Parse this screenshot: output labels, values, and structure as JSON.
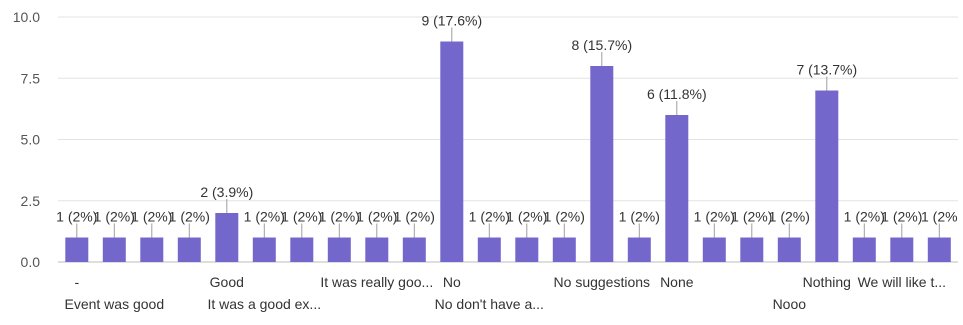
{
  "chart_data": {
    "type": "bar",
    "title": "",
    "xlabel": "",
    "ylabel": "",
    "ylim": [
      0,
      10
    ],
    "yticks": [
      "0.0",
      "2.5",
      "5.0",
      "7.5",
      "10.0"
    ],
    "grid": true,
    "legend": "none",
    "bar_color": "#7467cc",
    "categories": [
      "-",
      "Event was good",
      "",
      "",
      "Good",
      "It was a good ex...",
      "",
      "",
      "It was really goo...",
      "",
      "No",
      "No don't have a...",
      "",
      "",
      "No suggestions",
      "",
      "None",
      "",
      "",
      "Nooo",
      "Nothing",
      "",
      "We will like t...",
      ""
    ],
    "values": [
      1,
      1,
      1,
      1,
      2,
      1,
      1,
      1,
      1,
      1,
      9,
      1,
      1,
      1,
      8,
      1,
      6,
      1,
      1,
      1,
      7,
      1,
      1,
      1
    ],
    "data_labels": [
      "1 (2%)",
      "1 (2%)",
      "1 (2%)",
      "1 (2%)",
      "2 (3.9%)",
      "1 (2%)",
      "1 (2%)",
      "1 (2%)",
      "1 (2%)",
      "1 (2%)",
      "9 (17.6%)",
      "1 (2%)",
      "1 (2%)",
      "1 (2%)",
      "8 (15.7%)",
      "1 (2%)",
      "6 (11.8%)",
      "1 (2%)",
      "1 (2%)",
      "1 (2%)",
      "7 (13.7%)",
      "1 (2%)",
      "1 (2%)",
      "1 (2%"
    ]
  }
}
